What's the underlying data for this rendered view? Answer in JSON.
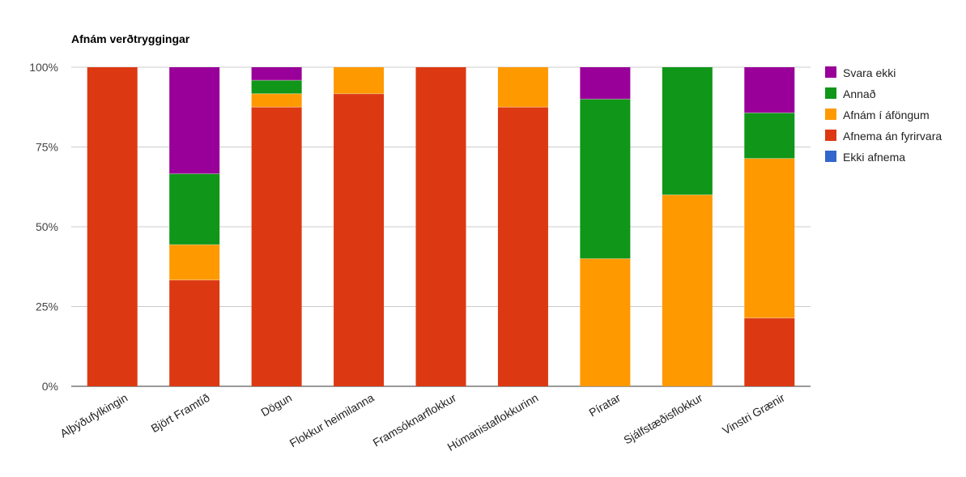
{
  "chart_data": {
    "type": "bar",
    "stacked": true,
    "title": "Afnám verðtryggingar",
    "xlabel": "",
    "ylabel": "",
    "ylim": [
      0,
      100
    ],
    "y_ticks": [
      "0%",
      "25%",
      "50%",
      "75%",
      "100%"
    ],
    "y_tick_values": [
      0,
      25,
      50,
      75,
      100
    ],
    "grid": true,
    "legend_position": "right",
    "categories": [
      "Alþýðufylkingin",
      "Björt Framtíð",
      "Dögun",
      "Flokkur heimilanna",
      "Framsóknarflokkur",
      "Húmanistaflokkurinn",
      "Píratar",
      "Sjálfstæðisflokkur",
      "Vinstri Grænir"
    ],
    "series": [
      {
        "name": "Ekki afnema",
        "color": "#3366cc",
        "values": [
          0,
          0,
          0,
          0,
          0,
          0,
          0,
          0,
          0
        ]
      },
      {
        "name": "Afnema án fyrirvara",
        "color": "#dc3912",
        "values": [
          100,
          33.3,
          87.5,
          91.7,
          100,
          87.5,
          0,
          0,
          21.4
        ]
      },
      {
        "name": "Afnám í áföngum",
        "color": "#ff9900",
        "values": [
          0,
          11.1,
          4.2,
          8.3,
          0,
          12.5,
          40,
          60,
          50
        ]
      },
      {
        "name": "Annað",
        "color": "#109618",
        "values": [
          0,
          22.2,
          4.2,
          0,
          0,
          0,
          50,
          40,
          14.3
        ]
      },
      {
        "name": "Svara ekki",
        "color": "#990099",
        "values": [
          0,
          33.4,
          4.1,
          0,
          0,
          0,
          10,
          0,
          14.3
        ]
      }
    ],
    "legend_order": [
      "Svara ekki",
      "Annað",
      "Afnám í áföngum",
      "Afnema án fyrirvara",
      "Ekki afnema"
    ]
  }
}
